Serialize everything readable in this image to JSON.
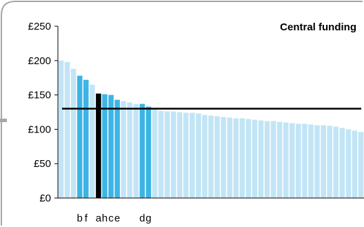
{
  "chart_data": {
    "type": "bar",
    "title": "Central funding",
    "xlabel": "",
    "ylabel": "",
    "ylim": [
      0,
      250
    ],
    "yticks": [
      {
        "value": 0,
        "label": "£0"
      },
      {
        "value": 50,
        "label": "£50"
      },
      {
        "value": 100,
        "label": "£100"
      },
      {
        "value": 150,
        "label": "£150"
      },
      {
        "value": 200,
        "label": "£200"
      },
      {
        "value": 250,
        "label": "£250"
      }
    ],
    "reference_line": {
      "value": 130,
      "color": "#000000"
    },
    "colors": {
      "default": "#c2e5f6",
      "highlight": "#3db4e5",
      "selected": "#000000",
      "frame": "#a6a6a6"
    },
    "bar_labels": [
      "",
      "",
      "",
      "b",
      "f",
      "",
      "a",
      "h",
      "c",
      "e",
      "",
      "",
      "",
      "d",
      "g",
      "",
      "",
      "",
      "",
      "",
      "",
      "",
      "",
      "",
      "",
      "",
      "",
      "",
      "",
      "",
      "",
      "",
      "",
      "",
      "",
      "",
      "",
      "",
      "",
      "",
      "",
      "",
      "",
      "",
      "",
      "",
      "",
      "",
      ""
    ],
    "bar_colors": [
      "default",
      "default",
      "default",
      "highlight",
      "highlight",
      "default",
      "selected",
      "highlight",
      "highlight",
      "highlight",
      "default",
      "default",
      "default",
      "highlight",
      "highlight",
      "default",
      "default",
      "default",
      "default",
      "default",
      "default",
      "default",
      "default",
      "default",
      "default",
      "default",
      "default",
      "default",
      "default",
      "default",
      "default",
      "default",
      "default",
      "default",
      "default",
      "default",
      "default",
      "default",
      "default",
      "default",
      "default",
      "default",
      "default",
      "default",
      "default",
      "default",
      "default",
      "default",
      "default"
    ],
    "values": [
      200,
      198,
      188,
      178,
      172,
      165,
      152,
      151,
      150,
      143,
      141,
      139,
      137,
      137,
      133,
      131,
      127,
      126,
      126,
      125,
      124,
      124,
      123,
      121,
      120,
      119,
      118,
      117,
      116,
      116,
      115,
      114,
      113,
      112,
      112,
      111,
      110,
      109,
      108,
      108,
      107,
      106,
      106,
      105,
      104,
      102,
      100,
      98,
      96
    ]
  }
}
